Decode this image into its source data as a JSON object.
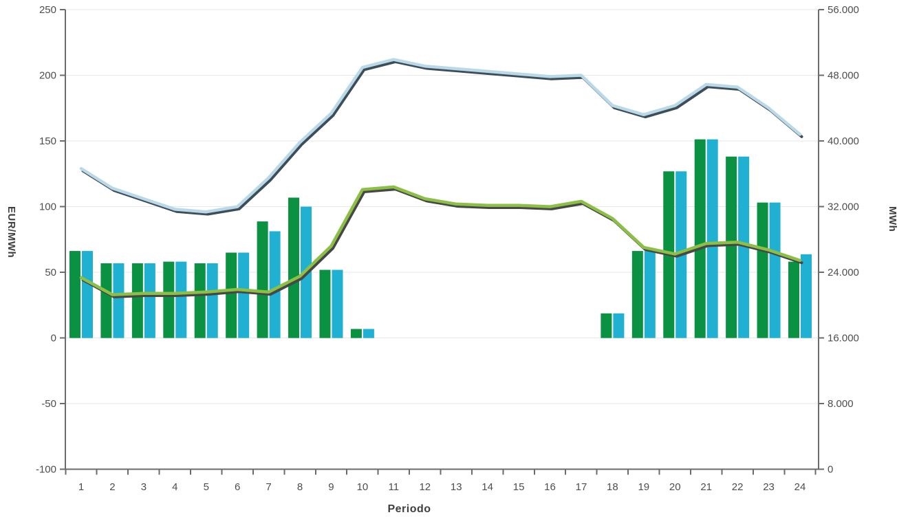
{
  "axes": {
    "left_title": "EUR/MWh",
    "right_title": "MWh",
    "x_title": "Periodo"
  },
  "chart_data": {
    "type": "bar+line",
    "title": "",
    "legend": false,
    "grid": true,
    "x_axis": {
      "label": "Periodo",
      "categories": [
        "1",
        "2",
        "3",
        "4",
        "5",
        "6",
        "7",
        "8",
        "9",
        "10",
        "11",
        "12",
        "13",
        "14",
        "15",
        "16",
        "17",
        "18",
        "19",
        "20",
        "21",
        "22",
        "23",
        "24"
      ]
    },
    "left_axis": {
      "label": "EUR/MWh",
      "min": -100,
      "max": 250,
      "step": 50,
      "tick_labels": [
        "250",
        "200",
        "150",
        "100",
        "50",
        "0",
        "-50",
        "-100"
      ],
      "tick_values": [
        250,
        200,
        150,
        100,
        50,
        0,
        -50,
        -100
      ]
    },
    "right_axis": {
      "label": "MWh",
      "min": 0,
      "max": 56000,
      "step": 8000,
      "tick_labels": [
        "56.000",
        "48.000",
        "40.000",
        "32.000",
        "24.000",
        "16.000",
        "8.000",
        "0"
      ],
      "tick_values": [
        56000,
        48000,
        40000,
        32000,
        24000,
        16000,
        8000,
        0
      ]
    },
    "series": [
      {
        "name": "green-energy-bars",
        "type": "bar",
        "axis": "right",
        "color": "#0a9142",
        "values_mwh": [
          26600,
          25100,
          25100,
          25300,
          25100,
          26400,
          30200,
          33100,
          24300,
          17100,
          null,
          null,
          null,
          null,
          null,
          null,
          null,
          19000,
          26600,
          36300,
          40200,
          38100,
          32500,
          25300
        ]
      },
      {
        "name": "cyan-energy-bars",
        "type": "bar",
        "axis": "right",
        "color": "#1fb0d2",
        "values_mwh": [
          26600,
          25100,
          25100,
          25300,
          25100,
          26400,
          29000,
          32000,
          24300,
          17100,
          null,
          null,
          null,
          null,
          null,
          null,
          null,
          19000,
          26600,
          36300,
          40200,
          38100,
          32500,
          26200
        ]
      },
      {
        "name": "light-blue-price-line",
        "type": "line",
        "axis": "left",
        "color": "#b9d9e8",
        "shadow_color": "#3e4e58",
        "values_eur_mwh": [
          129,
          114,
          106,
          98,
          96,
          100,
          122,
          149,
          171,
          206,
          212,
          207,
          205,
          203,
          201,
          199,
          200,
          177,
          170,
          177,
          193,
          191,
          175,
          155
        ]
      },
      {
        "name": "green-price-line",
        "type": "line",
        "axis": "left",
        "color": "#8cbf45",
        "shadow_color": "#474747",
        "values_eur_mwh": [
          46,
          33,
          34,
          34,
          35,
          37,
          35,
          47,
          70,
          113,
          115,
          106,
          102,
          101,
          101,
          100,
          104,
          91,
          69,
          64,
          72,
          73,
          67,
          59
        ]
      }
    ]
  },
  "style": {
    "grid_color": "#e7e7e7",
    "axis_color": "#6b6b6b",
    "tick_text_color": "#4d4d4d"
  }
}
